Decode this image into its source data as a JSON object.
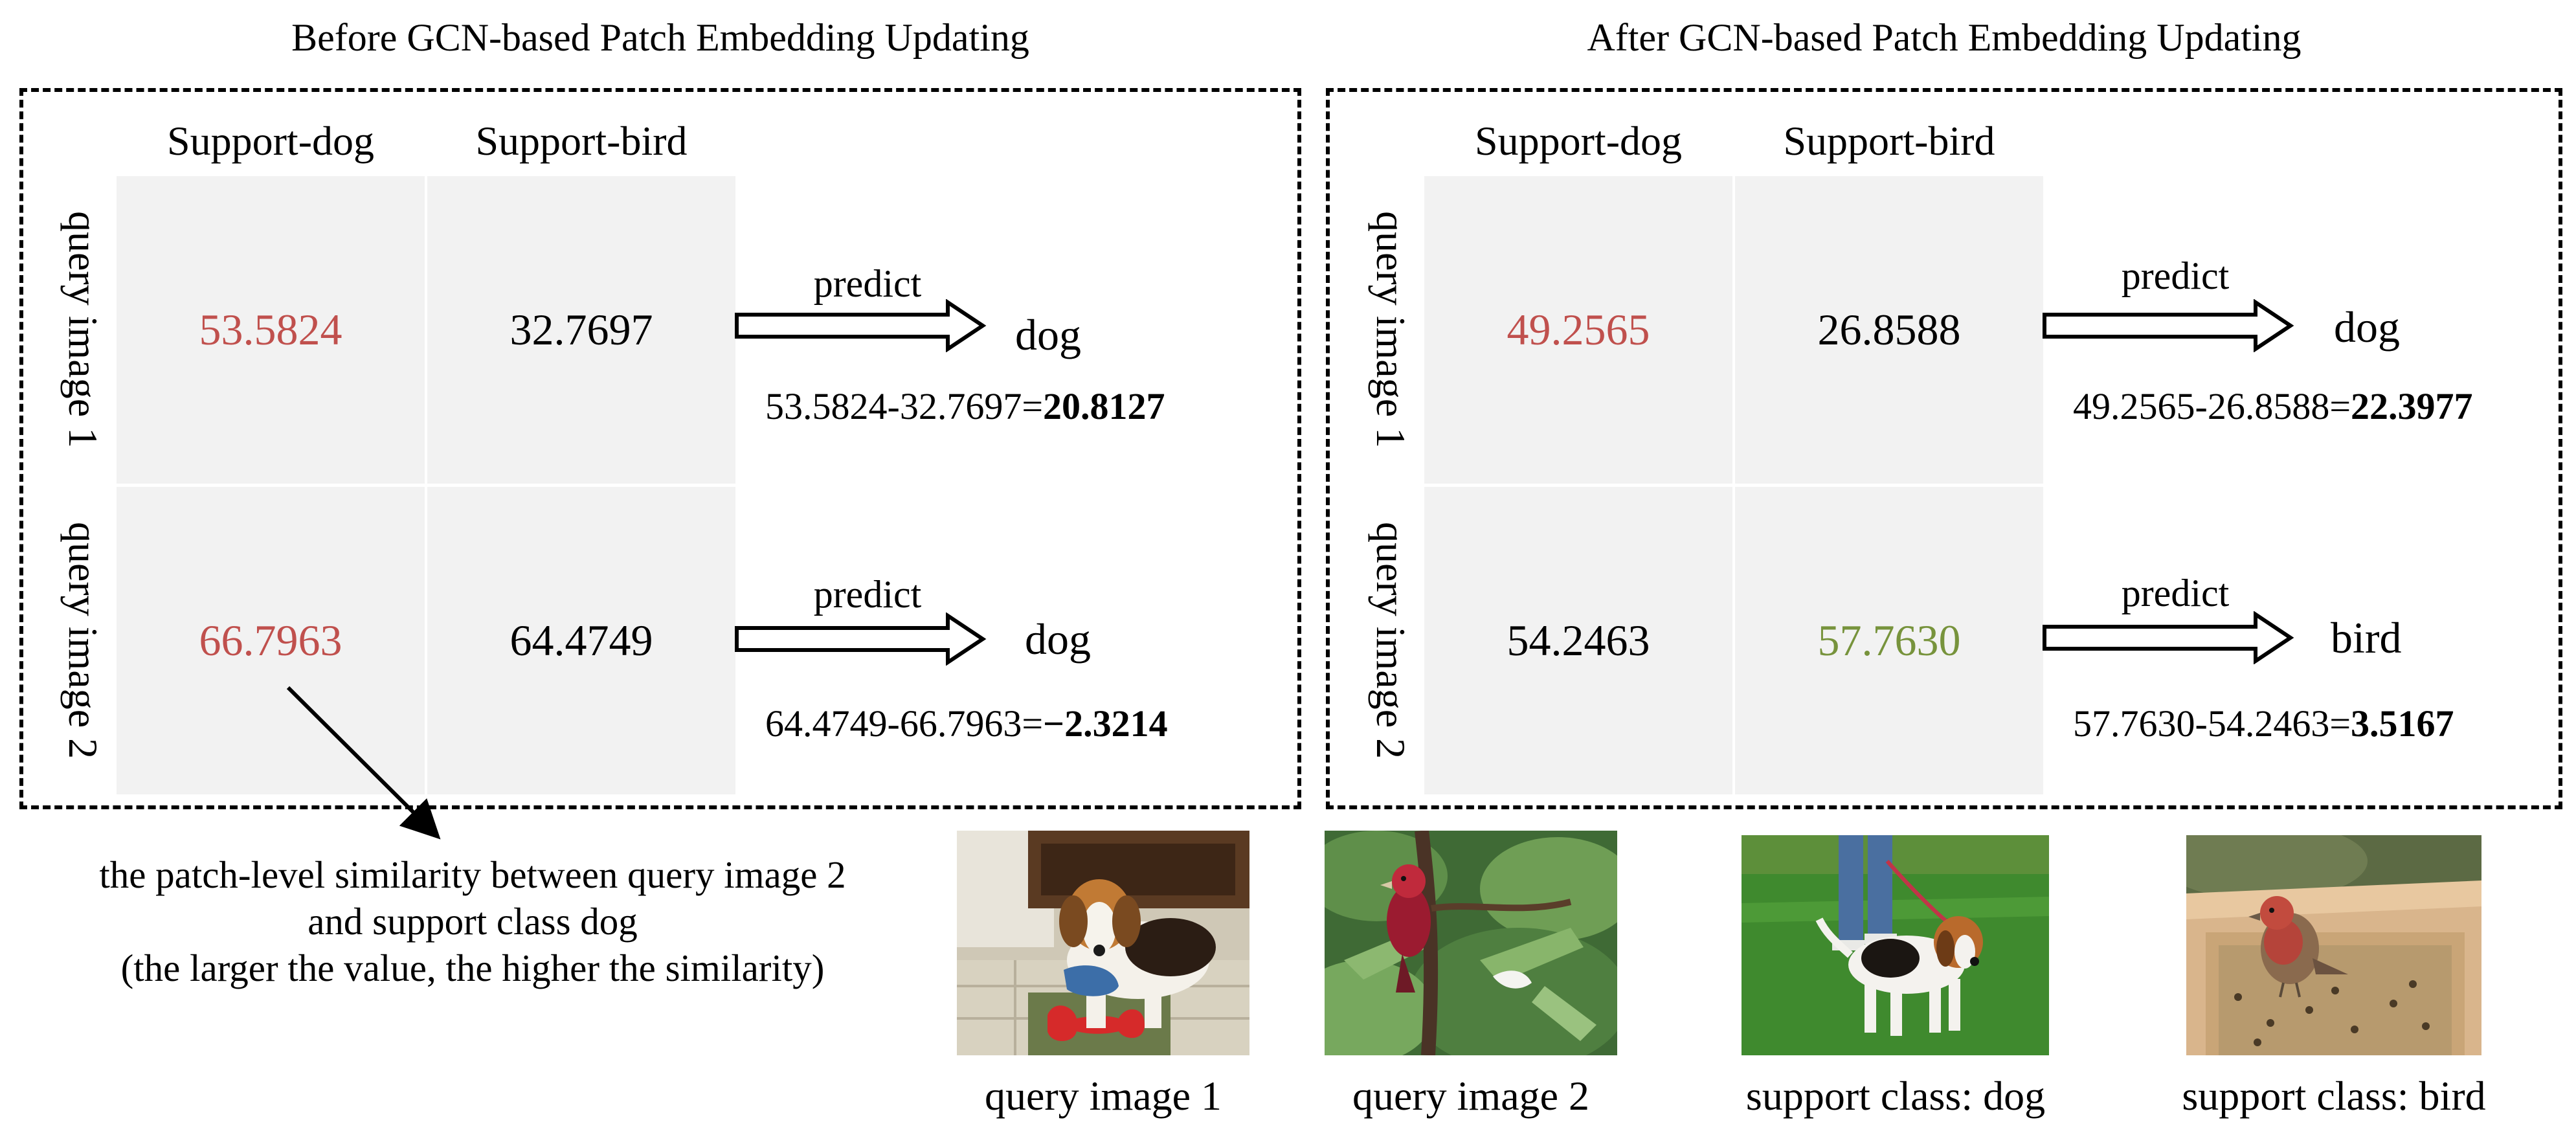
{
  "panels": {
    "before": {
      "title": "Before GCN-based Patch Embedding Updating",
      "col_headers": [
        "Support-dog",
        "Support-bird"
      ],
      "row_labels": [
        "query image 1",
        "query image 2"
      ],
      "rows": [
        {
          "dog": "53.5824",
          "bird": "32.7697",
          "predict_label": "predict",
          "prediction": "dog",
          "eq_prefix": "53.5824-32.7697=",
          "eq_result": "20.8127"
        },
        {
          "dog": "66.7963",
          "bird": "64.4749",
          "predict_label": "predict",
          "prediction": "dog",
          "eq_prefix": "64.4749-66.7963=",
          "eq_result": "−2.3214"
        }
      ]
    },
    "after": {
      "title": "After GCN-based Patch Embedding Updating",
      "col_headers": [
        "Support-dog",
        "Support-bird"
      ],
      "row_labels": [
        "query image 1",
        "query image 2"
      ],
      "rows": [
        {
          "dog": "49.2565",
          "bird": "26.8588",
          "predict_label": "predict",
          "prediction": "dog",
          "eq_prefix": "49.2565-26.8588=",
          "eq_result": "22.3977"
        },
        {
          "dog": "54.2463",
          "bird": "57.7630",
          "predict_label": "predict",
          "prediction": "bird",
          "eq_prefix": "57.7630-54.2463=",
          "eq_result": "3.5167"
        }
      ]
    }
  },
  "annotation": {
    "lines": [
      "the patch-level similarity between query image 2",
      "and support class dog",
      "(the larger the value, the higher the similarity)"
    ]
  },
  "images": [
    {
      "caption": "query image 1"
    },
    {
      "caption": "query image 2"
    },
    {
      "caption": "support class: dog"
    },
    {
      "caption": "support class: bird"
    }
  ],
  "colors": {
    "highlight_red": "#c0504d",
    "highlight_green": "#77933c",
    "cell_bg": "#f2f2f2"
  }
}
